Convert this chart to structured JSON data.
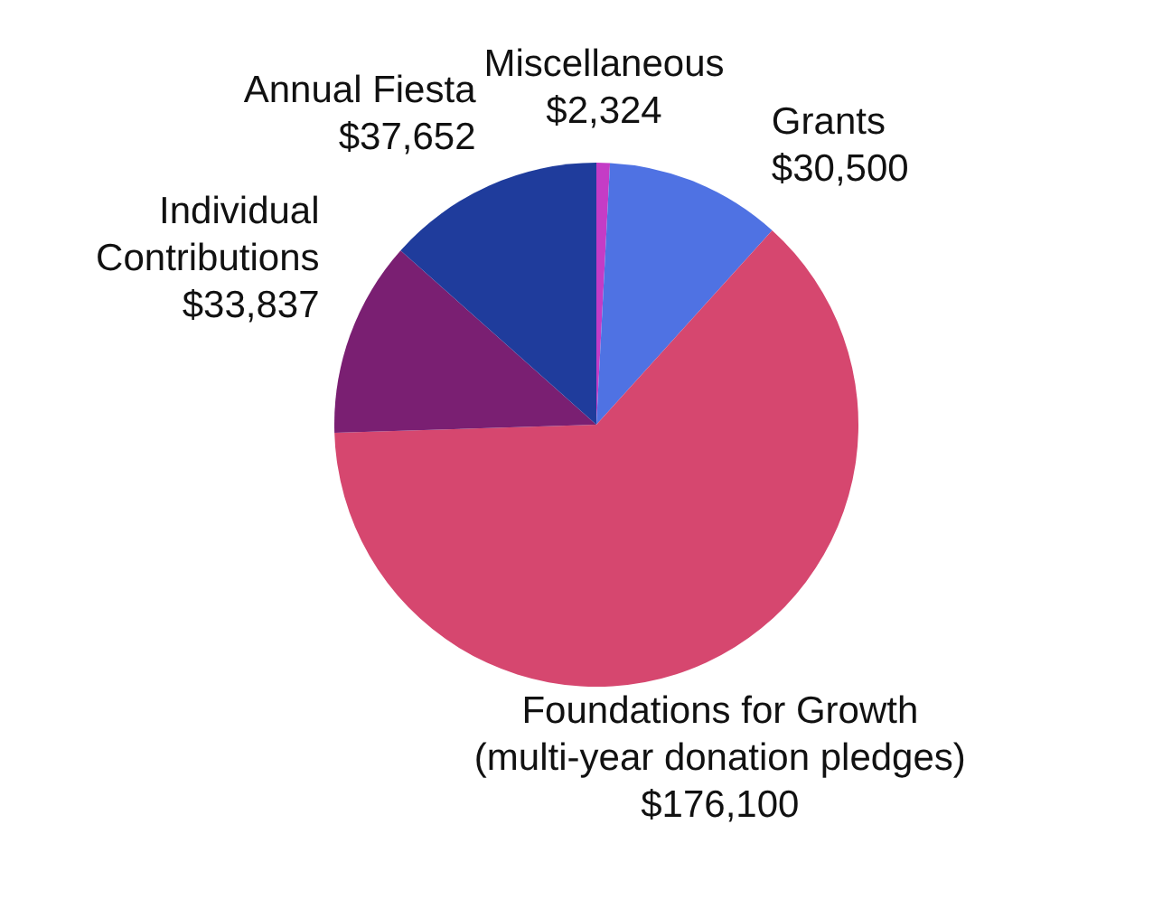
{
  "chart_data": {
    "type": "pie",
    "categories": [
      "Miscellaneous",
      "Grants",
      "Foundations for Growth (multi-year donation pledges)",
      "Individual Contributions",
      "Annual Fiesta"
    ],
    "values": [
      2324,
      30500,
      176100,
      33837,
      37652
    ],
    "value_labels": [
      "$2,324",
      "$30,500",
      "$176,100",
      "$33,837",
      "$37,652"
    ],
    "colors": [
      "#c43cc6",
      "#4f72e3",
      "#d6476f",
      "#7a1f72",
      "#1f3c9c"
    ]
  }
}
